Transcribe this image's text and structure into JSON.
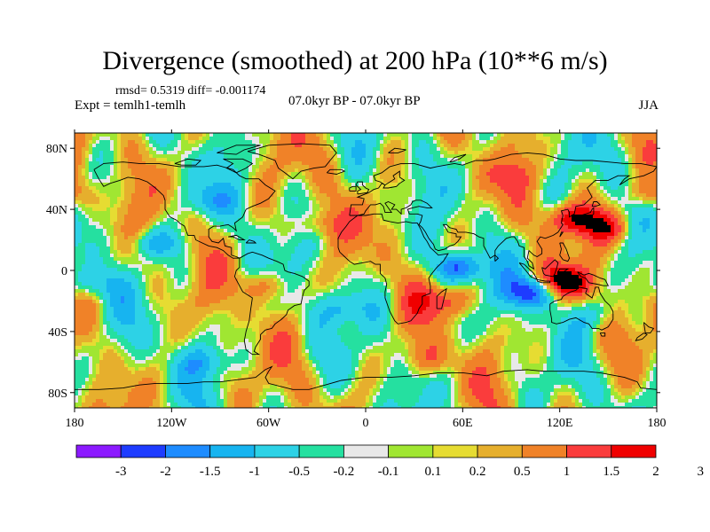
{
  "title": "Divergence (smoothed) at 200 hPa (10**6 m/s)",
  "stats": "rmsd= 0.5319 diff= -0.001174",
  "expt": "Expt = temlh1-temlh",
  "period": "07.0kyr BP - 07.0kyr BP",
  "season": "JJA",
  "map": {
    "projection": "cylindrical equidistant",
    "lon_range": [
      -180,
      180
    ],
    "lat_range": [
      -90,
      90
    ],
    "x_ticks": [
      {
        "lon": -180,
        "label": "180"
      },
      {
        "lon": -120,
        "label": "120W"
      },
      {
        "lon": -60,
        "label": "60W"
      },
      {
        "lon": 0,
        "label": "0"
      },
      {
        "lon": 60,
        "label": "60E"
      },
      {
        "lon": 120,
        "label": "120E"
      },
      {
        "lon": 180,
        "label": "180"
      }
    ],
    "y_ticks": [
      {
        "lat": 80,
        "label": "80N"
      },
      {
        "lat": 40,
        "label": "40N"
      },
      {
        "lat": 0,
        "label": "0"
      },
      {
        "lat": -40,
        "label": "40S"
      },
      {
        "lat": -80,
        "label": "80S"
      }
    ],
    "background_color": "#e6e6e6",
    "coastline_color": "#000000"
  },
  "colorbar": {
    "colors": [
      "#8c1aff",
      "#1e3cff",
      "#1e8cff",
      "#17b4f0",
      "#2dd2e6",
      "#25e0a0",
      "#e8e8e8",
      "#a0e632",
      "#e6dc32",
      "#e6af2d",
      "#f08228",
      "#fa3c3c",
      "#f00000"
    ],
    "labels": [
      "-3",
      "-2",
      "-1.5",
      "-1",
      "-0.5",
      "-0.2",
      "-0.1",
      "0.1",
      "0.2",
      "0.5",
      "1",
      "1.5",
      "2",
      "3"
    ]
  },
  "features": [
    {
      "name": "strong-convergence-indian-ocean",
      "lon": 103,
      "lat": -14,
      "value": -2.4
    },
    {
      "name": "convergence-east-africa",
      "lon": 58,
      "lat": 2,
      "value": -2.1
    },
    {
      "name": "divergence-maritime-continent",
      "lon": 122,
      "lat": -8,
      "value": 2.4
    },
    {
      "name": "divergence-east-asia",
      "lon": 128,
      "lat": 34,
      "value": 1.8
    },
    {
      "name": "divergence-western-pacific",
      "lon": 150,
      "lat": 28,
      "value": 1.3
    },
    {
      "name": "convergence-eastern-pacific",
      "lon": -130,
      "lat": 18,
      "value": -1.2
    },
    {
      "name": "convergence-central-pacific",
      "lon": -170,
      "lat": -8,
      "value": -0.9
    },
    {
      "name": "divergence-southern-africa",
      "lon": 50,
      "lat": -20,
      "value": 1.2
    },
    {
      "name": "convergence-south-atlantic",
      "lon": -15,
      "lat": -25,
      "value": -0.9
    },
    {
      "name": "divergence-south-america",
      "lon": -62,
      "lat": -10,
      "value": 1.0
    },
    {
      "name": "divergence-north-atlantic",
      "lon": -30,
      "lat": 30,
      "value": 0.8
    },
    {
      "name": "convergence-north-america",
      "lon": -95,
      "lat": 45,
      "value": -0.8
    },
    {
      "name": "divergence-north-pacific",
      "lon": 175,
      "lat": 50,
      "value": 0.9
    },
    {
      "name": "convergence-southern-ocean",
      "lon": -100,
      "lat": -60,
      "value": -0.9
    },
    {
      "name": "divergence-southern-ocean",
      "lon": 40,
      "lat": -58,
      "value": 0.8
    },
    {
      "name": "convergence-australia",
      "lon": 140,
      "lat": -30,
      "value": -0.7
    },
    {
      "name": "divergence-siberia",
      "lon": 90,
      "lat": 62,
      "value": 0.6
    }
  ]
}
